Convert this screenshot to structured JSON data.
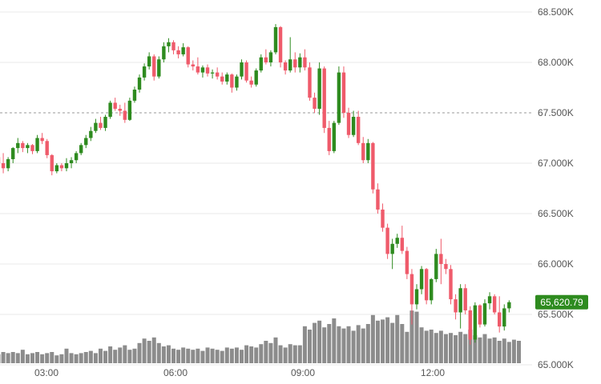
{
  "chart_data": {
    "type": "candlestick",
    "x_ticks": [
      "03:00",
      "06:00",
      "09:00",
      "12:00"
    ],
    "y_ticks": [
      "68.500K",
      "68.000K",
      "67.500K",
      "67.000K",
      "66.500K",
      "66.000K",
      "65.500K",
      "65.000K"
    ],
    "ylim": [
      65000,
      68600
    ],
    "last_price_label": "65,620.79",
    "last_price": 65620.79,
    "reference_price": 67500,
    "grid": true,
    "colors": {
      "up": "#2e8b1f",
      "down": "#ef5b6b",
      "volume": "#8c8c8c",
      "grid": "#e9e9e9",
      "last_price_bg": "#2e8b1f"
    },
    "candles": [
      [
        67060,
        67150,
        66950,
        67000
      ],
      [
        67000,
        67100,
        66900,
        66950
      ],
      [
        66950,
        67060,
        66920,
        67040
      ],
      [
        67040,
        67160,
        67000,
        67150
      ],
      [
        67150,
        67250,
        67100,
        67200
      ],
      [
        67200,
        67220,
        67110,
        67150
      ],
      [
        67150,
        67200,
        67100,
        67180
      ],
      [
        67180,
        67190,
        67090,
        67120
      ],
      [
        67120,
        67280,
        67100,
        67250
      ],
      [
        67250,
        67300,
        67190,
        67220
      ],
      [
        67220,
        67240,
        67050,
        67080
      ],
      [
        67080,
        67090,
        66880,
        66920
      ],
      [
        66920,
        67000,
        66900,
        66980
      ],
      [
        66980,
        67000,
        66920,
        66950
      ],
      [
        66950,
        67050,
        66920,
        67000
      ],
      [
        67000,
        67060,
        66950,
        67030
      ],
      [
        67030,
        67120,
        67000,
        67100
      ],
      [
        67100,
        67200,
        67080,
        67180
      ],
      [
        67180,
        67280,
        67150,
        67250
      ],
      [
        67250,
        67360,
        67220,
        67320
      ],
      [
        67320,
        67440,
        67300,
        67400
      ],
      [
        67400,
        67460,
        67330,
        67350
      ],
      [
        67350,
        67480,
        67320,
        67460
      ],
      [
        67460,
        67620,
        67440,
        67600
      ],
      [
        67600,
        67650,
        67520,
        67540
      ],
      [
        67540,
        67580,
        67470,
        67520
      ],
      [
        67520,
        67600,
        67400,
        67430
      ],
      [
        67430,
        67650,
        67420,
        67620
      ],
      [
        67620,
        67760,
        67600,
        67730
      ],
      [
        67730,
        67880,
        67700,
        67850
      ],
      [
        67850,
        67990,
        67820,
        67960
      ],
      [
        67960,
        68100,
        67930,
        68060
      ],
      [
        68060,
        68080,
        67820,
        67860
      ],
      [
        67860,
        68060,
        67840,
        68030
      ],
      [
        68030,
        68200,
        68000,
        68160
      ],
      [
        68160,
        68240,
        68100,
        68200
      ],
      [
        68200,
        68220,
        68080,
        68120
      ],
      [
        68120,
        68160,
        68040,
        68080
      ],
      [
        68080,
        68190,
        68060,
        68150
      ],
      [
        68150,
        68160,
        67950,
        67980
      ],
      [
        67980,
        68020,
        67920,
        67960
      ],
      [
        67960,
        68050,
        67880,
        67900
      ],
      [
        67900,
        67970,
        67850,
        67950
      ],
      [
        67950,
        67980,
        67860,
        67890
      ],
      [
        67890,
        67930,
        67840,
        67900
      ],
      [
        67900,
        67950,
        67830,
        67860
      ],
      [
        67860,
        67900,
        67780,
        67810
      ],
      [
        67810,
        67900,
        67780,
        67880
      ],
      [
        67880,
        67890,
        67700,
        67750
      ],
      [
        67750,
        67880,
        67720,
        67860
      ],
      [
        67860,
        68030,
        67830,
        68000
      ],
      [
        68000,
        68020,
        67800,
        67820
      ],
      [
        67820,
        67860,
        67750,
        67780
      ],
      [
        67780,
        67940,
        67760,
        67920
      ],
      [
        67920,
        68080,
        67900,
        68050
      ],
      [
        68050,
        68130,
        67980,
        68000
      ],
      [
        68000,
        68120,
        67960,
        68100
      ],
      [
        68100,
        68380,
        68080,
        68350
      ],
      [
        68350,
        68360,
        67950,
        68000
      ],
      [
        68000,
        68020,
        67880,
        67920
      ],
      [
        67920,
        68250,
        67900,
        68030
      ],
      [
        68030,
        68100,
        67900,
        67950
      ],
      [
        67950,
        68090,
        67900,
        68050
      ],
      [
        68050,
        68130,
        67920,
        67950
      ],
      [
        67950,
        68000,
        67620,
        67650
      ],
      [
        67650,
        67700,
        67500,
        67540
      ],
      [
        67540,
        68000,
        67480,
        67940
      ],
      [
        67940,
        67960,
        67300,
        67350
      ],
      [
        67350,
        67420,
        67080,
        67120
      ],
      [
        67120,
        67420,
        67100,
        67400
      ],
      [
        67400,
        67960,
        67380,
        67900
      ],
      [
        67900,
        67960,
        67450,
        67500
      ],
      [
        67500,
        67550,
        67250,
        67280
      ],
      [
        67280,
        67520,
        67260,
        67460
      ],
      [
        67460,
        67520,
        67180,
        67200
      ],
      [
        67200,
        67260,
        67000,
        67030
      ],
      [
        67030,
        67240,
        67000,
        67200
      ],
      [
        67200,
        67210,
        66700,
        66740
      ],
      [
        66740,
        66800,
        66500,
        66540
      ],
      [
        66540,
        66600,
        66320,
        66360
      ],
      [
        66360,
        66400,
        66050,
        66100
      ],
      [
        66100,
        66250,
        65950,
        66200
      ],
      [
        66200,
        66300,
        66160,
        66260
      ],
      [
        66260,
        66380,
        66100,
        66130
      ],
      [
        66130,
        66170,
        65850,
        65900
      ],
      [
        65900,
        65950,
        65400,
        65600
      ],
      [
        65600,
        65800,
        65550,
        65750
      ],
      [
        65750,
        65980,
        65700,
        65950
      ],
      [
        65950,
        65960,
        65600,
        65640
      ],
      [
        65640,
        65860,
        65600,
        65850
      ],
      [
        65850,
        66150,
        65820,
        66100
      ],
      [
        66100,
        66250,
        65800,
        66000
      ],
      [
        66000,
        66050,
        65900,
        65950
      ],
      [
        65950,
        65990,
        65600,
        65650
      ],
      [
        65650,
        65700,
        65450,
        65520
      ],
      [
        65520,
        65800,
        65360,
        65760
      ],
      [
        65760,
        65800,
        65500,
        65540
      ],
      [
        65540,
        65580,
        65200,
        65250
      ],
      [
        65250,
        65620,
        65220,
        65590
      ],
      [
        65590,
        65600,
        65370,
        65400
      ],
      [
        65400,
        65650,
        65380,
        65610
      ],
      [
        65610,
        65720,
        65550,
        65680
      ],
      [
        65680,
        65700,
        65500,
        65520
      ],
      [
        65520,
        65680,
        65320,
        65380
      ],
      [
        65380,
        65600,
        65340,
        65560
      ],
      [
        65560,
        65640,
        65520,
        65621
      ]
    ],
    "volume": [
      0.8,
      1.0,
      0.9,
      1.0,
      0.9,
      1.2,
      0.8,
      0.9,
      1.0,
      0.8,
      0.9,
      1.0,
      0.7,
      0.8,
      1.3,
      0.9,
      0.8,
      0.9,
      1.0,
      1.1,
      0.9,
      1.3,
      1.1,
      1.5,
      1.2,
      1.4,
      1.6,
      1.2,
      1.3,
      1.8,
      2.2,
      2.0,
      2.3,
      1.8,
      1.5,
      1.6,
      1.3,
      1.2,
      1.4,
      1.3,
      1.2,
      1.3,
      1.1,
      1.4,
      1.3,
      1.2,
      1.1,
      1.4,
      1.3,
      1.4,
      1.2,
      1.6,
      1.5,
      1.4,
      1.7,
      2.0,
      1.8,
      2.3,
      1.6,
      1.4,
      1.7,
      1.6,
      1.6,
      3.3,
      3.0,
      3.6,
      3.8,
      3.2,
      3.5,
      4.0,
      3.3,
      3.1,
      3.3,
      2.9,
      3.4,
      3.1,
      3.5,
      4.3,
      3.8,
      3.9,
      4.1,
      3.6,
      4.3,
      3.5,
      2.8,
      4.7,
      4.6,
      3.2,
      2.9,
      3.0,
      2.7,
      2.9,
      2.6,
      2.7,
      2.5,
      2.8,
      2.6,
      3.0,
      2.5,
      2.3,
      2.6,
      2.2,
      2.3,
      2.0,
      2.2,
      1.9,
      2.1,
      2.0
    ]
  }
}
